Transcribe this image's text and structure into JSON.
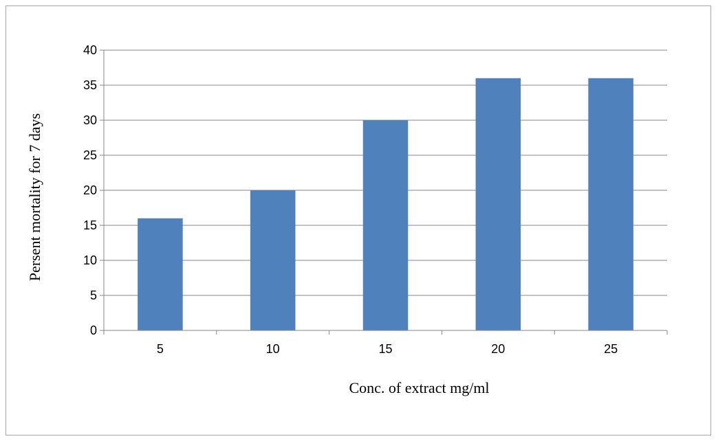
{
  "chart_data": {
    "type": "bar",
    "title": "",
    "xlabel": "Conc. of extract mg/ml",
    "ylabel": "Persent mortality for 7 days",
    "categories": [
      "5",
      "10",
      "15",
      "20",
      "25"
    ],
    "values": [
      16,
      20,
      30,
      36,
      36
    ],
    "ylim": [
      0,
      40
    ],
    "yticks": [
      "0",
      "5",
      "10",
      "15",
      "20",
      "25",
      "30",
      "35",
      "40"
    ],
    "grid": "horizontal",
    "legend": "none",
    "bar_color": "#4f81bd",
    "grid_color": "#868686"
  }
}
